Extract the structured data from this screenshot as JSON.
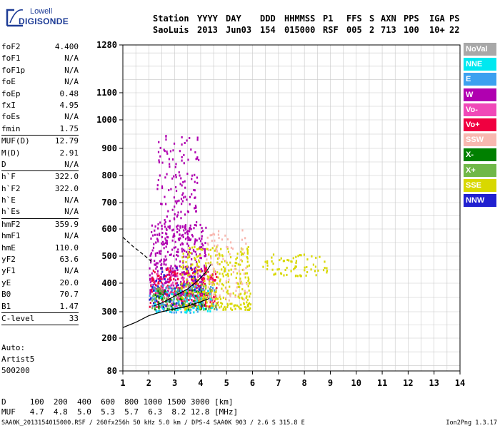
{
  "logo": {
    "top": "Lowell",
    "bottom": "DIGISONDE"
  },
  "header": {
    "row1": [
      "Station",
      "YYYY",
      "DAY",
      "DDD",
      "HHMMSS",
      "P1",
      "FFS",
      "S",
      "AXN",
      "PPS",
      "IGA",
      "PS"
    ],
    "row2": [
      "SaoLuis",
      "2013",
      "Jun03",
      "154",
      "015000",
      "RSF",
      "005",
      "2",
      "713",
      "100",
      "10+",
      "22"
    ]
  },
  "params": [
    [
      {
        "k": "foF2",
        "v": "4.400"
      },
      {
        "k": "foF1",
        "v": "N/A"
      },
      {
        "k": "foF1p",
        "v": "N/A"
      },
      {
        "k": "foE",
        "v": "N/A"
      },
      {
        "k": "foEp",
        "v": "0.48"
      },
      {
        "k": "fxI",
        "v": "4.95"
      },
      {
        "k": "foEs",
        "v": "N/A"
      },
      {
        "k": "fmin",
        "v": "1.75"
      }
    ],
    [
      {
        "k": "MUF(D)",
        "v": "12.79"
      },
      {
        "k": "M(D)",
        "v": "2.91"
      },
      {
        "k": "D",
        "v": "N/A"
      }
    ],
    [
      {
        "k": "h`F",
        "v": "322.0"
      },
      {
        "k": "h`F2",
        "v": "322.0"
      },
      {
        "k": "h`E",
        "v": "N/A"
      },
      {
        "k": "h`Es",
        "v": "N/A"
      }
    ],
    [
      {
        "k": "hmF2",
        "v": "359.9"
      },
      {
        "k": "hmF1",
        "v": "N/A"
      },
      {
        "k": "hmE",
        "v": "110.0"
      },
      {
        "k": "yF2",
        "v": "63.6"
      },
      {
        "k": "yF1",
        "v": "N/A"
      },
      {
        "k": "yE",
        "v": "20.0"
      },
      {
        "k": "B0",
        "v": "70.7"
      },
      {
        "k": "B1",
        "v": "1.47"
      }
    ],
    [
      {
        "k": "C-level",
        "v": "33"
      }
    ]
  ],
  "auto": [
    "Auto:",
    "Artist5",
    "500200"
  ],
  "legend": [
    {
      "label": "NoVal",
      "color": "#a8a8a8"
    },
    {
      "label": "NNE",
      "color": "#00e8f0"
    },
    {
      "label": "E",
      "color": "#3ca0f0"
    },
    {
      "label": "W",
      "color": "#b000b0"
    },
    {
      "label": "Vo-",
      "color": "#f048b8"
    },
    {
      "label": "Vo+",
      "color": "#f00040"
    },
    {
      "label": "SSW",
      "color": "#f8b8b0"
    },
    {
      "label": "X-",
      "color": "#008000"
    },
    {
      "label": "X+",
      "color": "#70b848"
    },
    {
      "label": "SSE",
      "color": "#d8d800"
    },
    {
      "label": "NNW",
      "color": "#2020d0"
    }
  ],
  "bottom": {
    "row1": "D     100  200  400  600  800 1000 1500 3000 [km]",
    "row2": "MUF   4.7  4.8  5.0  5.3  5.7  6.3  8.2 12.8 [MHz]"
  },
  "footer": {
    "left": "SAA0K_2013154015000.RSF / 260fx256h 50 kHz 5.0 km / DPS-4 SAA0K 903 / 2.6 S 315.8 E",
    "right": "Ion2Png 1.3.17"
  },
  "chart_data": {
    "type": "scatter",
    "title": "",
    "xlabel": "",
    "ylabel": "",
    "xlim": [
      1,
      14
    ],
    "ylim": [
      80,
      1280
    ],
    "xticks": [
      1,
      2,
      3,
      4,
      5,
      6,
      7,
      8,
      9,
      10,
      11,
      12,
      13,
      14
    ],
    "yticks": [
      80,
      200,
      300,
      400,
      500,
      600,
      700,
      800,
      900,
      1000,
      1100,
      1280
    ],
    "grid": true,
    "clusters": [
      {
        "name": "W",
        "color": "#b000b0",
        "x": [
          2.0,
          4.2
        ],
        "y": [
          360,
          620
        ],
        "n": 420
      },
      {
        "name": "W",
        "color": "#b000b0",
        "x": [
          2.3,
          3.9
        ],
        "y": [
          600,
          960
        ],
        "n": 140
      },
      {
        "name": "Vo+",
        "color": "#f00040",
        "x": [
          2.0,
          4.6
        ],
        "y": [
          320,
          460
        ],
        "n": 260
      },
      {
        "name": "Vo-",
        "color": "#f048b8",
        "x": [
          2.2,
          4.5
        ],
        "y": [
          320,
          440
        ],
        "n": 90
      },
      {
        "name": "X+",
        "color": "#70b848",
        "x": [
          2.1,
          4.6
        ],
        "y": [
          310,
          400
        ],
        "n": 160
      },
      {
        "name": "X-",
        "color": "#008000",
        "x": [
          2.2,
          4.2
        ],
        "y": [
          310,
          380
        ],
        "n": 60
      },
      {
        "name": "SSE",
        "color": "#d8d800",
        "x": [
          3.2,
          5.9
        ],
        "y": [
          310,
          540
        ],
        "n": 300
      },
      {
        "name": "SSE",
        "color": "#d8d800",
        "x": [
          6.3,
          8.9
        ],
        "y": [
          430,
          510
        ],
        "n": 70
      },
      {
        "name": "SSW",
        "color": "#f8b8b0",
        "x": [
          4.2,
          5.8
        ],
        "y": [
          340,
          600
        ],
        "n": 90
      },
      {
        "name": "E",
        "color": "#3ca0f0",
        "x": [
          2.0,
          4.6
        ],
        "y": [
          300,
          400
        ],
        "n": 70
      },
      {
        "name": "NNE",
        "color": "#00e8f0",
        "x": [
          2.0,
          4.5
        ],
        "y": [
          300,
          380
        ],
        "n": 50
      },
      {
        "name": "NNW",
        "color": "#2020d0",
        "x": [
          2.0,
          4.0
        ],
        "y": [
          320,
          460
        ],
        "n": 40
      }
    ],
    "traces": [
      {
        "style": "solid",
        "points": [
          [
            1.0,
            240
          ],
          [
            1.5,
            260
          ],
          [
            2.0,
            285
          ],
          [
            2.5,
            300
          ],
          [
            3.0,
            310
          ],
          [
            3.5,
            320
          ],
          [
            4.0,
            335
          ],
          [
            4.3,
            345
          ]
        ]
      },
      {
        "style": "solid",
        "points": [
          [
            2.2,
            320
          ],
          [
            2.6,
            335
          ],
          [
            3.0,
            355
          ],
          [
            3.5,
            380
          ],
          [
            3.9,
            410
          ],
          [
            4.2,
            440
          ],
          [
            4.4,
            470
          ]
        ]
      },
      {
        "style": "dashed",
        "points": [
          [
            1.0,
            570
          ],
          [
            1.4,
            535
          ],
          [
            1.8,
            505
          ],
          [
            2.1,
            480
          ]
        ]
      }
    ]
  }
}
